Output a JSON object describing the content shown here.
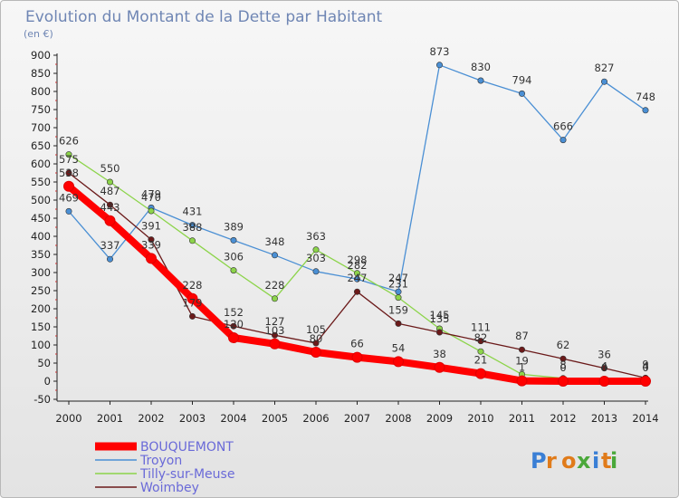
{
  "chart_data": {
    "type": "line",
    "title": "Evolution du Montant de la Dette par Habitant",
    "subtitle": "(en €)",
    "x": [
      "2000",
      "2001",
      "2002",
      "2003",
      "2004",
      "2005",
      "2006",
      "2007",
      "2008",
      "2009",
      "2010",
      "2011",
      "2012",
      "2013",
      "2014"
    ],
    "y_ticks": [
      "-50",
      "0",
      "50",
      "100",
      "150",
      "200",
      "250",
      "300",
      "350",
      "400",
      "450",
      "500",
      "550",
      "600",
      "650",
      "700",
      "750",
      "800",
      "850",
      "900"
    ],
    "ylim": [
      -50,
      900
    ],
    "grid": false,
    "legend_position": "bottom-left",
    "series": [
      {
        "name": "BOUQUEMONT",
        "color": "#ff0000",
        "values": [
          538,
          443,
          339,
          228,
          120,
          103,
          80,
          66,
          54,
          38,
          21,
          1,
          0,
          0,
          0
        ],
        "labels": [
          "538",
          "443",
          "339",
          "228",
          "120",
          "103",
          "80",
          "66",
          "54",
          "38",
          "21",
          "1",
          "0",
          "0",
          "0"
        ]
      },
      {
        "name": "Troyon",
        "color": "#4a8fd4",
        "values": [
          469,
          337,
          479,
          431,
          389,
          348,
          303,
          282,
          247,
          873,
          830,
          794,
          666,
          827,
          748
        ],
        "labels": [
          "469",
          "337",
          "479",
          "431",
          "389",
          "348",
          "303",
          "282",
          "247",
          "873",
          "830",
          "794",
          "666",
          "827",
          "748"
        ]
      },
      {
        "name": "Tilly-sur-Meuse",
        "color": "#8cd44a",
        "values": [
          626,
          550,
          470,
          388,
          306,
          228,
          363,
          298,
          231,
          145,
          82,
          19,
          8,
          4,
          4
        ],
        "labels": [
          "626",
          "550",
          "470",
          "388",
          "306",
          "228",
          "363",
          "298",
          "231",
          "145",
          "82",
          "19",
          "8",
          "4",
          "4"
        ]
      },
      {
        "name": "Woimbey",
        "color": "#6b1a1a",
        "values": [
          575,
          487,
          391,
          179,
          152,
          127,
          105,
          247,
          159,
          135,
          111,
          87,
          62,
          36,
          9
        ],
        "labels": [
          "575",
          "487",
          "391",
          "179",
          "152",
          "127",
          "105",
          "247",
          "159",
          "135",
          "111",
          "87",
          "62",
          "36",
          "9"
        ]
      }
    ],
    "logo_text": "Proxiti"
  }
}
